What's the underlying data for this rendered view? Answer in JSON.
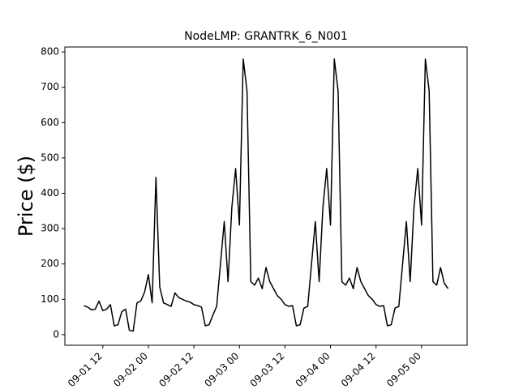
{
  "chart_data": {
    "type": "line",
    "title": "NodeLMP: GRANTRK_6_N001",
    "y_label": "Price ($)",
    "x": [
      "09-01 07",
      "09-01 08",
      "09-01 09",
      "09-01 10",
      "09-01 11",
      "09-01 12",
      "09-01 13",
      "09-01 14",
      "09-01 15",
      "09-01 16",
      "09-01 17",
      "09-01 18",
      "09-01 19",
      "09-01 20",
      "09-01 21",
      "09-01 22",
      "09-01 23",
      "09-02 00",
      "09-02 01",
      "09-02 02",
      "09-02 03",
      "09-02 04",
      "09-02 05",
      "09-02 06",
      "09-02 07",
      "09-02 08",
      "09-02 09",
      "09-02 10",
      "09-02 11",
      "09-02 12",
      "09-02 13",
      "09-02 14",
      "09-02 15",
      "09-02 16",
      "09-02 17",
      "09-02 18",
      "09-02 19",
      "09-02 20",
      "09-02 21",
      "09-02 22",
      "09-02 23",
      "09-03 00",
      "09-03 01",
      "09-03 02",
      "09-03 03",
      "09-03 04",
      "09-03 05",
      "09-03 06",
      "09-03 07",
      "09-03 08",
      "09-03 09",
      "09-03 10",
      "09-03 11",
      "09-03 12",
      "09-03 13",
      "09-03 14",
      "09-03 15",
      "09-03 16",
      "09-03 17",
      "09-03 18",
      "09-03 19",
      "09-03 20",
      "09-03 21",
      "09-03 22",
      "09-03 23",
      "09-04 00",
      "09-04 01",
      "09-04 02",
      "09-04 03",
      "09-04 04",
      "09-04 05",
      "09-04 06",
      "09-04 07",
      "09-04 08",
      "09-04 09",
      "09-04 10",
      "09-04 11",
      "09-04 12",
      "09-04 13",
      "09-04 14",
      "09-04 15",
      "09-04 16",
      "09-04 17",
      "09-04 18",
      "09-04 19",
      "09-04 20",
      "09-04 21",
      "09-04 22",
      "09-04 23",
      "09-05 00",
      "09-05 01",
      "09-05 02",
      "09-05 03",
      "09-05 04",
      "09-05 05",
      "09-05 06",
      "09-05 07"
    ],
    "series": [
      {
        "color": "#000000",
        "values": [
          82,
          78,
          70,
          72,
          95,
          68,
          72,
          85,
          25,
          28,
          65,
          72,
          12,
          10,
          90,
          95,
          120,
          170,
          90,
          445,
          135,
          90,
          85,
          80,
          118,
          105,
          100,
          95,
          92,
          85,
          82,
          78,
          25,
          28,
          55,
          80,
          200,
          320,
          150,
          360,
          470,
          310,
          780,
          690,
          150,
          140,
          160,
          130,
          190,
          150,
          130,
          110,
          100,
          85,
          80,
          82,
          25,
          28,
          75,
          80,
          200,
          320,
          150,
          360,
          470,
          310,
          780,
          690,
          150,
          140,
          160,
          130,
          190,
          150,
          130,
          110,
          100,
          85,
          80,
          82,
          25,
          28,
          75,
          80,
          200,
          320,
          150,
          360,
          470,
          310,
          780,
          690,
          150,
          140,
          190,
          145,
          130
        ]
      }
    ],
    "xlim": [
      "09-01 02",
      "09-05 12"
    ],
    "xticks": [
      "09-01 12",
      "09-02 00",
      "09-02 12",
      "09-03 00",
      "09-03 12",
      "09-04 00",
      "09-04 12",
      "09-05 00"
    ],
    "ylim": [
      -30,
      814
    ],
    "yticks": [
      0,
      100,
      200,
      300,
      400,
      500,
      600,
      700,
      800
    ]
  }
}
